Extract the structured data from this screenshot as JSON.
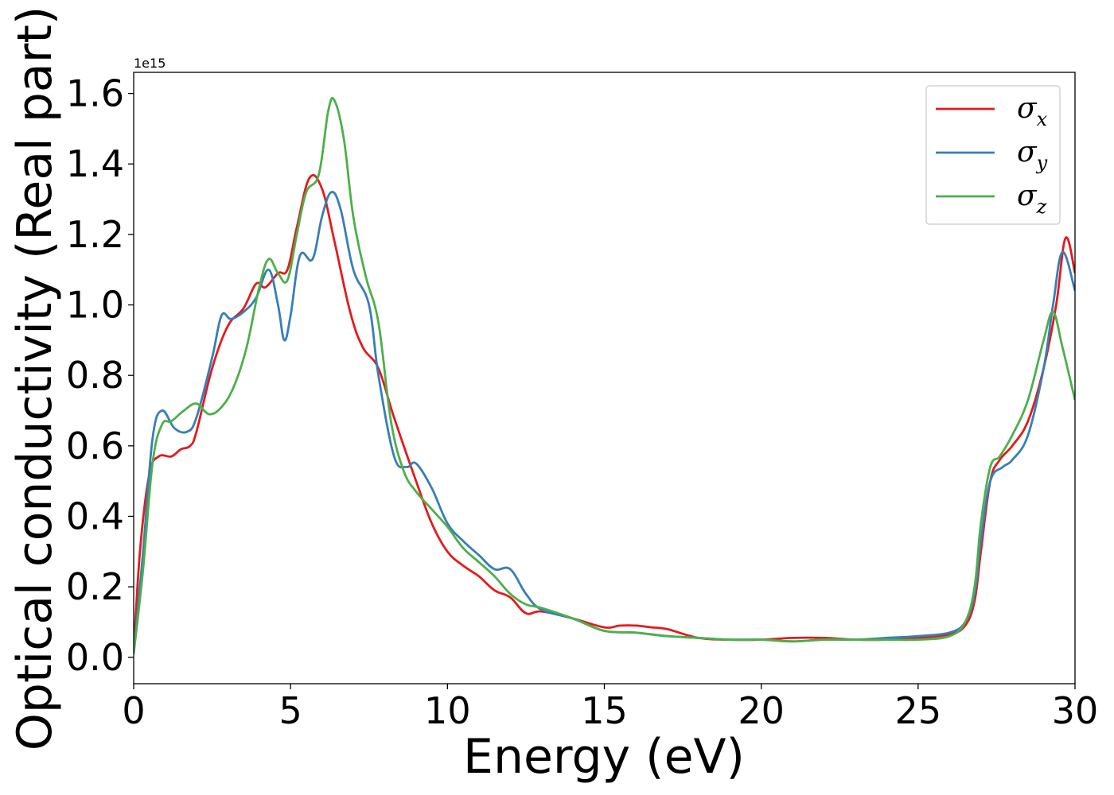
{
  "chart_data": {
    "type": "line",
    "title": "",
    "xlabel": "Energy (eV)",
    "ylabel": "Optical conductivity (Real part)",
    "y_offset_text": "1e15",
    "xlim": [
      0,
      30
    ],
    "ylim": [
      -0.075,
      1.66
    ],
    "y_scale": 1000000000000000.0,
    "xticks": [
      0,
      5,
      10,
      15,
      20,
      25,
      30
    ],
    "xtick_labels": [
      "0",
      "5",
      "10",
      "15",
      "20",
      "25",
      "30"
    ],
    "yticks": [
      0.0,
      0.2,
      0.4,
      0.6,
      0.8,
      1.0,
      1.2,
      1.4,
      1.6
    ],
    "ytick_labels": [
      "0.0",
      "0.2",
      "0.4",
      "0.6",
      "0.8",
      "1.0",
      "1.2",
      "1.4",
      "1.6"
    ],
    "grid": false,
    "legend_position": "top-right",
    "series": [
      {
        "name": "σx",
        "legend_base": "σ",
        "legend_sub": "x",
        "color": "#e41a1c",
        "x": [
          0,
          0.2,
          0.5,
          0.8,
          1.2,
          1.5,
          1.8,
          2.0,
          2.5,
          3.0,
          3.5,
          3.9,
          4.2,
          4.6,
          4.9,
          5.2,
          5.6,
          6.0,
          6.4,
          6.9,
          7.3,
          7.8,
          8.3,
          9.0,
          9.5,
          10.0,
          10.5,
          11.0,
          11.5,
          12.0,
          12.5,
          13.0,
          14.0,
          15.0,
          15.5,
          16.0,
          16.5,
          17.0,
          18.0,
          19.0,
          20.0,
          21.0,
          22.0,
          23.0,
          24.0,
          25.0,
          26.0,
          26.5,
          26.8,
          27.0,
          27.3,
          27.6,
          28.0,
          28.5,
          29.0,
          29.4,
          29.7,
          30.0
        ],
        "y": [
          0.01,
          0.3,
          0.52,
          0.57,
          0.57,
          0.59,
          0.6,
          0.64,
          0.82,
          0.94,
          0.99,
          1.06,
          1.05,
          1.09,
          1.1,
          1.22,
          1.36,
          1.33,
          1.18,
          0.98,
          0.88,
          0.82,
          0.68,
          0.5,
          0.38,
          0.3,
          0.26,
          0.23,
          0.19,
          0.17,
          0.125,
          0.13,
          0.11,
          0.085,
          0.09,
          0.09,
          0.085,
          0.08,
          0.055,
          0.05,
          0.05,
          0.055,
          0.055,
          0.05,
          0.05,
          0.055,
          0.065,
          0.09,
          0.16,
          0.3,
          0.5,
          0.56,
          0.6,
          0.67,
          0.82,
          1.0,
          1.19,
          1.09
        ]
      },
      {
        "name": "σy",
        "legend_base": "σ",
        "legend_sub": "y",
        "color": "#377eb8",
        "x": [
          0,
          0.3,
          0.6,
          0.9,
          1.3,
          1.7,
          2.0,
          2.5,
          2.8,
          3.1,
          3.5,
          3.9,
          4.3,
          4.6,
          4.8,
          5.0,
          5.3,
          5.7,
          6.0,
          6.3,
          6.6,
          7.0,
          7.5,
          7.8,
          8.3,
          8.7,
          9.0,
          9.5,
          10.0,
          10.5,
          11.0,
          11.5,
          12.0,
          12.5,
          13.0,
          14.0,
          15.0,
          16.0,
          17.0,
          18.0,
          19.0,
          20.0,
          21.0,
          22.0,
          23.0,
          24.0,
          25.0,
          26.0,
          26.5,
          26.8,
          27.0,
          27.3,
          27.7,
          28.0,
          28.5,
          29.0,
          29.3,
          29.6,
          30.0
        ],
        "y": [
          0.01,
          0.3,
          0.62,
          0.7,
          0.65,
          0.64,
          0.68,
          0.85,
          0.97,
          0.96,
          0.98,
          1.02,
          1.1,
          1.0,
          0.9,
          0.97,
          1.14,
          1.13,
          1.25,
          1.32,
          1.27,
          1.1,
          1.0,
          0.8,
          0.57,
          0.54,
          0.55,
          0.48,
          0.38,
          0.33,
          0.29,
          0.25,
          0.25,
          0.18,
          0.135,
          0.11,
          0.075,
          0.07,
          0.06,
          0.055,
          0.05,
          0.05,
          0.045,
          0.05,
          0.05,
          0.055,
          0.06,
          0.07,
          0.1,
          0.18,
          0.33,
          0.5,
          0.54,
          0.56,
          0.63,
          0.82,
          1.0,
          1.15,
          1.04
        ]
      },
      {
        "name": "σz",
        "legend_base": "σ",
        "legend_sub": "z",
        "color": "#4daf4a",
        "x": [
          0,
          0.3,
          0.6,
          0.9,
          1.2,
          1.6,
          2.0,
          2.4,
          2.8,
          3.2,
          3.6,
          4.0,
          4.3,
          4.6,
          4.9,
          5.2,
          5.5,
          5.9,
          6.2,
          6.4,
          6.7,
          7.0,
          7.4,
          7.8,
          8.2,
          8.6,
          9.0,
          9.5,
          10.0,
          10.5,
          11.0,
          11.5,
          12.0,
          12.5,
          13.0,
          14.0,
          15.0,
          16.0,
          17.0,
          18.0,
          19.0,
          20.0,
          21.0,
          22.0,
          23.0,
          24.0,
          25.0,
          26.0,
          26.5,
          26.8,
          27.0,
          27.3,
          27.6,
          28.0,
          28.5,
          29.0,
          29.3,
          29.6,
          30.0
        ],
        "y": [
          0.01,
          0.25,
          0.55,
          0.66,
          0.67,
          0.7,
          0.72,
          0.69,
          0.71,
          0.77,
          0.88,
          1.05,
          1.13,
          1.09,
          1.07,
          1.2,
          1.32,
          1.37,
          1.55,
          1.58,
          1.47,
          1.25,
          1.08,
          0.95,
          0.67,
          0.53,
          0.47,
          0.42,
          0.37,
          0.31,
          0.27,
          0.23,
          0.18,
          0.15,
          0.14,
          0.11,
          0.075,
          0.07,
          0.06,
          0.055,
          0.05,
          0.05,
          0.045,
          0.05,
          0.05,
          0.05,
          0.05,
          0.06,
          0.1,
          0.2,
          0.38,
          0.54,
          0.57,
          0.63,
          0.73,
          0.9,
          0.98,
          0.88,
          0.73
        ]
      }
    ]
  }
}
